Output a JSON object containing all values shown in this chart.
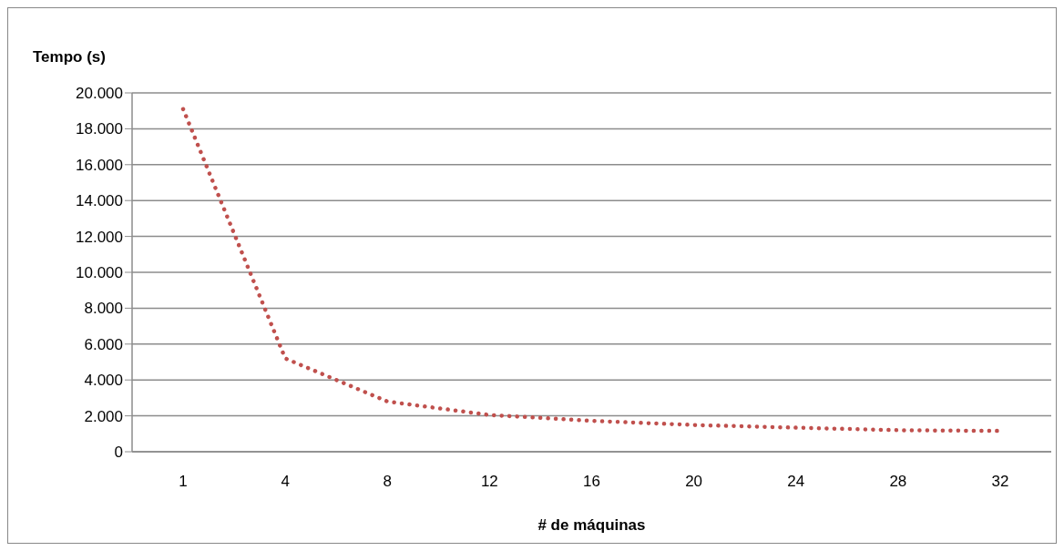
{
  "chart_data": {
    "type": "line",
    "ylabel": "Tempo (s)",
    "xlabel": "# de máquinas",
    "categories": [
      "1",
      "4",
      "8",
      "12",
      "16",
      "20",
      "24",
      "28",
      "32"
    ],
    "series": [
      {
        "color": "#c0504d",
        "values": [
          19100,
          5200,
          2800,
          2050,
          1720,
          1490,
          1340,
          1200,
          1160
        ]
      }
    ],
    "ylim": [
      0,
      20000
    ],
    "yticks": [
      0,
      {
        "value": 2000,
        "label": "2.000"
      },
      {
        "value": 4000,
        "label": "4.000"
      },
      {
        "value": 6000,
        "label": "6.000"
      },
      {
        "value": 8000,
        "label": "8.000"
      },
      {
        "value": 10000,
        "label": "10.000"
      },
      {
        "value": 12000,
        "label": "12.000"
      },
      {
        "value": 14000,
        "label": "14.000"
      },
      {
        "value": 16000,
        "label": "16.000"
      },
      {
        "value": 18000,
        "label": "18.000"
      },
      {
        "value": 20000,
        "label": "20.000"
      }
    ],
    "grid": "y",
    "legend": false,
    "marker": "none",
    "line_style": "dotted"
  }
}
